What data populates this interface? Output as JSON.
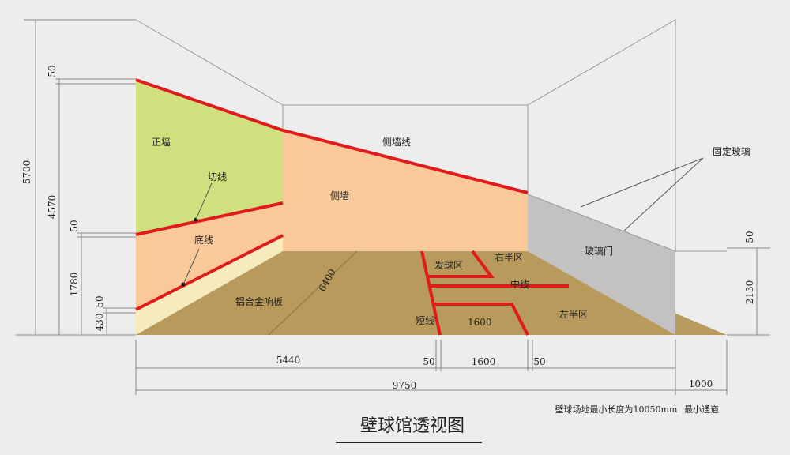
{
  "title": "壁球馆透视图",
  "labels": {
    "front_wall": "正墙",
    "cut_line": "切线",
    "base_line": "底线",
    "tin": "铝合金响板",
    "side_wall_line": "侧墙线",
    "side_wall": "侧墙",
    "diagonal": "6400",
    "service_box": "发球区",
    "right_half": "右半区",
    "center_line": "中线",
    "short_line": "短线",
    "floor_width": "1600",
    "left_half": "左半区",
    "glass_door": "玻璃门",
    "fixed_glass": "固定玻璃"
  },
  "dimensions": {
    "total_height": "5700",
    "top_gap": "50",
    "side_line_height": "4570",
    "cut_gap": "50",
    "cut_height": "1780",
    "tin_gap": "50",
    "tin_height": "430",
    "glass_gap": "50",
    "glass_height": "2130",
    "half_length": "5440",
    "line_a": "50",
    "box_width": "1600",
    "line_b": "50",
    "length": "9750",
    "passage": "1000"
  },
  "notes": {
    "min_length": "壁球场地最小长度为10050mm",
    "min_passage": "最小通道"
  }
}
